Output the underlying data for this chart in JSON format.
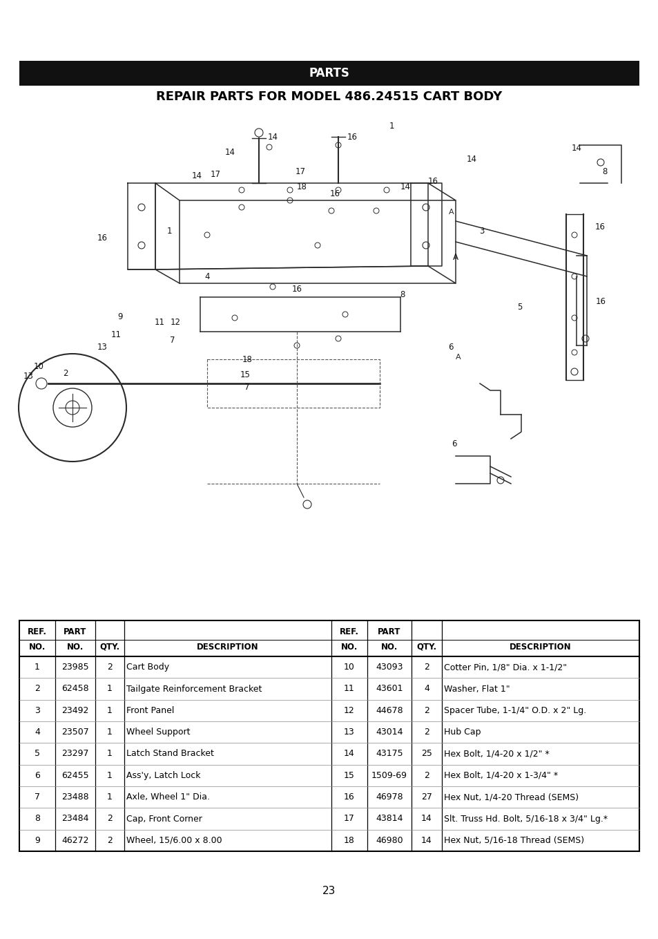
{
  "page_bg": "#ffffff",
  "header_bar_color": "#111111",
  "header_text": "PARTS",
  "header_text_color": "#ffffff",
  "subtitle": "REPAIR PARTS FOR MODEL 486.24515 CART BODY",
  "subtitle_color": "#000000",
  "page_number": "23",
  "table_data_left": [
    [
      "1",
      "23985",
      "2",
      "Cart Body"
    ],
    [
      "2",
      "62458",
      "1",
      "Tailgate Reinforcement Bracket"
    ],
    [
      "3",
      "23492",
      "1",
      "Front Panel"
    ],
    [
      "4",
      "23507",
      "1",
      "Wheel Support"
    ],
    [
      "5",
      "23297",
      "1",
      "Latch Stand Bracket"
    ],
    [
      "6",
      "62455",
      "1",
      "Ass'y, Latch Lock"
    ],
    [
      "7",
      "23488",
      "1",
      "Axle, Wheel 1\" Dia."
    ],
    [
      "8",
      "23484",
      "2",
      "Cap, Front Corner"
    ],
    [
      "9",
      "46272",
      "2",
      "Wheel, 15/6.00 x 8.00"
    ]
  ],
  "table_data_right": [
    [
      "10",
      "43093",
      "2",
      "Cotter Pin, 1/8\" Dia. x 1-1/2\""
    ],
    [
      "11",
      "43601",
      "4",
      "Washer, Flat 1\""
    ],
    [
      "12",
      "44678",
      "2",
      "Spacer Tube, 1-1/4\" O.D. x 2\" Lg."
    ],
    [
      "13",
      "43014",
      "2",
      "Hub Cap"
    ],
    [
      "14",
      "43175",
      "25",
      "Hex Bolt, 1/4-20 x 1/2\" *"
    ],
    [
      "15",
      "1509-69",
      "2",
      "Hex Bolt, 1/4-20 x 1-3/4\" *"
    ],
    [
      "16",
      "46978",
      "27",
      "Hex Nut, 1/4-20 Thread (SEMS)"
    ],
    [
      "17",
      "43814",
      "14",
      "Slt. Truss Hd. Bolt, 5/16-18 x 3/4\" Lg.*"
    ],
    [
      "18",
      "46980",
      "14",
      "Hex Nut, 5/16-18 Thread (SEMS)"
    ]
  ]
}
